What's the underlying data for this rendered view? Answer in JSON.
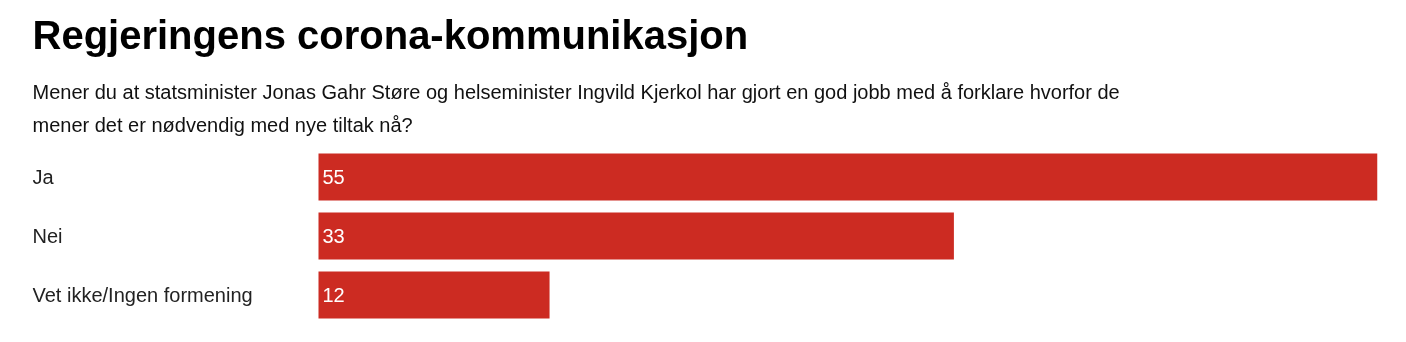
{
  "chart_data": {
    "type": "bar",
    "orientation": "horizontal",
    "title": "Regjeringens corona-kommunikasjon",
    "subtitle": "Mener du at statsminister Jonas Gahr Støre og helseminister Ingvild Kjerkol har gjort en god jobb med å forklare hvorfor de mener det er nødvendig med nye tiltak nå?",
    "categories": [
      "Ja",
      "Nei",
      "Vet ikke/Ingen formening"
    ],
    "values": [
      55,
      33,
      12
    ],
    "color": "#cc2b22",
    "xlim": [
      0,
      55
    ],
    "data_labels": true,
    "grid": false,
    "tick_labels": false
  }
}
